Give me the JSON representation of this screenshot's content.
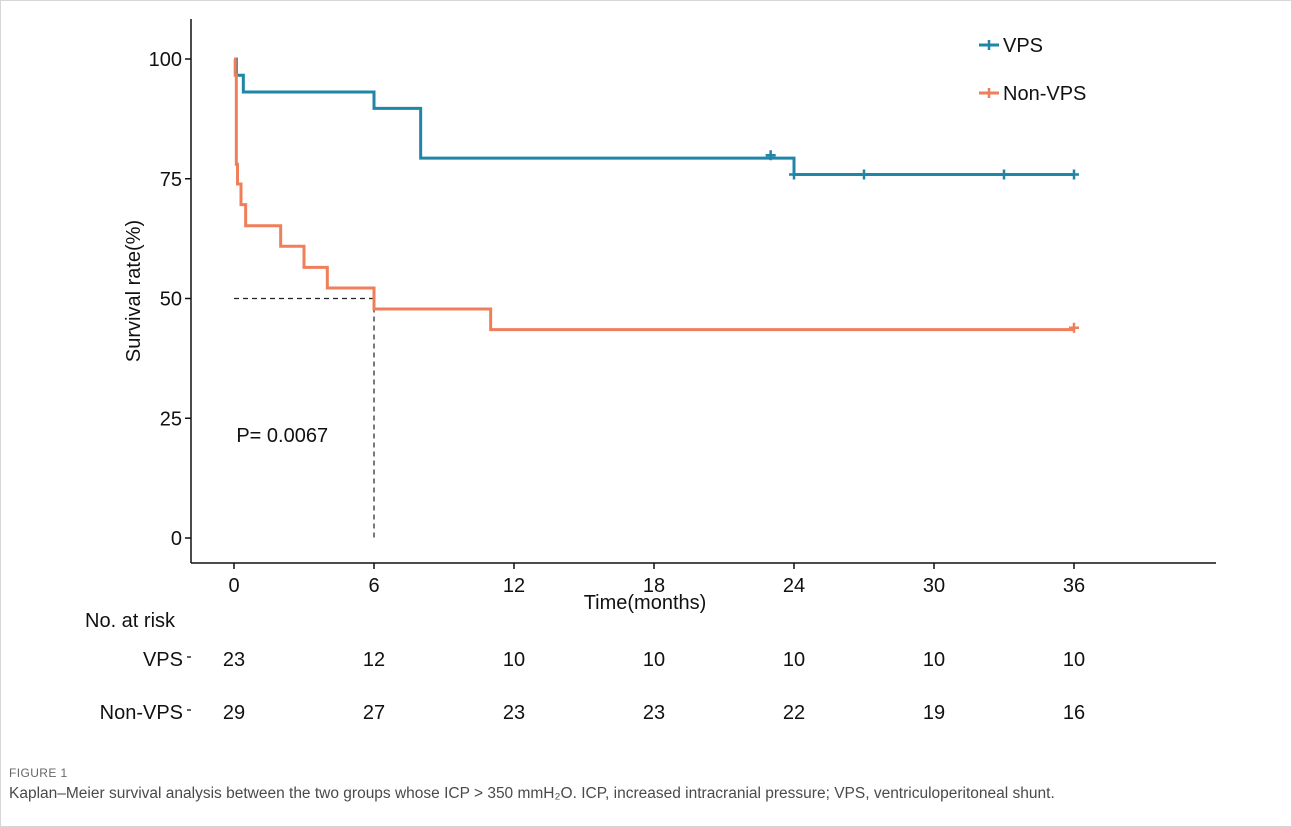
{
  "figure": {
    "label": "FIGURE 1",
    "caption": "Kaplan–Meier survival analysis between the two groups whose ICP > 350 mmH₂O. ICP, increased intracranial pressure; VPS, ventriculoperitoneal shunt."
  },
  "chart_data": {
    "type": "line",
    "subtype": "kaplan-meier-step",
    "title": "",
    "xlabel": "Time(months)",
    "ylabel": "Survival rate(%)",
    "xlim": [
      -2,
      41
    ],
    "ylim": [
      0,
      100
    ],
    "xticks": [
      0,
      6,
      12,
      18,
      24,
      30,
      36
    ],
    "yticks": [
      0,
      25,
      50,
      75,
      100
    ],
    "grid": false,
    "legend": {
      "position": "top-right",
      "entries": [
        "VPS",
        "Non-VPS"
      ]
    },
    "series": [
      {
        "name": "VPS",
        "color": "#1f86a8",
        "steps": [
          [
            0,
            100
          ],
          [
            0.1,
            96.6
          ],
          [
            0.4,
            93.1
          ],
          [
            6,
            89.7
          ],
          [
            8,
            79.3
          ],
          [
            24,
            75.9
          ],
          [
            36,
            75.9
          ]
        ],
        "censored": [
          [
            23,
            79.9
          ],
          [
            24,
            75.9
          ],
          [
            27,
            75.9
          ],
          [
            33,
            75.9
          ],
          [
            36,
            75.9
          ]
        ]
      },
      {
        "name": "Non-VPS",
        "color": "#ef7e5a",
        "steps": [
          [
            0,
            100
          ],
          [
            0.05,
            96.6
          ],
          [
            0.1,
            78
          ],
          [
            0.15,
            73.9
          ],
          [
            0.3,
            69.6
          ],
          [
            0.5,
            65.2
          ],
          [
            2,
            60.9
          ],
          [
            3,
            56.5
          ],
          [
            4,
            52.2
          ],
          [
            6,
            47.8
          ],
          [
            11,
            43.5
          ],
          [
            36,
            43.5
          ]
        ],
        "censored": [
          [
            36,
            43.9
          ]
        ]
      }
    ],
    "median_line": {
      "y": 50,
      "x": 6
    },
    "annotations": [
      {
        "text": "P= 0.0067",
        "x": 0.1,
        "y": 21.5
      }
    ],
    "risk_table": {
      "title": "No. at risk",
      "time_points": [
        0,
        6,
        12,
        18,
        24,
        30,
        36
      ],
      "rows": [
        {
          "label": "VPS",
          "counts": [
            23,
            12,
            10,
            10,
            10,
            10,
            10
          ]
        },
        {
          "label": "Non-VPS",
          "counts": [
            29,
            27,
            23,
            23,
            22,
            19,
            16
          ]
        }
      ]
    }
  }
}
